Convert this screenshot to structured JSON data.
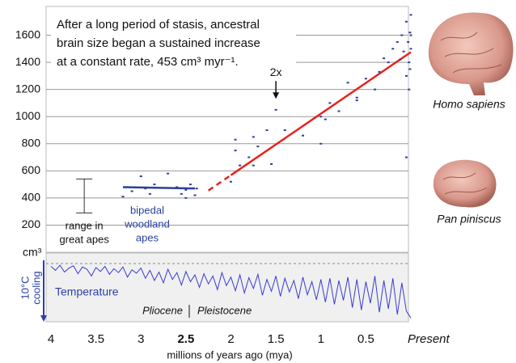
{
  "chart_data": {
    "type": "scatter",
    "title": [
      "After a long period of stasis, ancestral",
      "brain size began a sustained increase",
      "at a constant rate, 453 cm³ myr⁻¹."
    ],
    "x_label": "millions of years ago (mya)",
    "y_label": "cm³",
    "xlim": [
      4,
      0
    ],
    "ylim": [
      0,
      1800
    ],
    "xticks": [
      4,
      3.5,
      3,
      2.5,
      2,
      1.5,
      1,
      0.5,
      {
        "value": 0,
        "label": "Present"
      }
    ],
    "yticks": [
      200,
      400,
      600,
      800,
      1000,
      1200,
      1400,
      1600
    ],
    "grid": true,
    "series": [
      {
        "color": "#2b3f9e",
        "x": [
          3.2,
          3.15,
          3.1,
          3.0,
          2.95,
          2.9,
          2.85,
          2.7,
          2.6,
          2.55,
          2.5,
          2.5,
          2.45,
          2.4,
          2.38,
          2.0,
          1.95,
          1.95,
          1.9,
          1.8,
          1.75,
          1.75,
          1.7,
          1.6,
          1.55,
          1.5,
          1.4,
          1.2,
          1.0,
          1.0,
          0.95,
          0.9,
          0.8,
          0.7,
          0.6,
          0.6,
          0.5,
          0.4,
          0.35,
          0.3,
          0.25,
          0.2,
          0.15,
          0.12,
          0.1,
          0.08,
          0.05,
          0.05,
          0.03,
          0.02,
          0.02,
          0.01,
          0.01,
          0.0,
          0.0,
          0.0,
          0.05
        ],
        "values": [
          410,
          480,
          450,
          560,
          470,
          430,
          500,
          580,
          480,
          430,
          400,
          460,
          500,
          420,
          470,
          520,
          750,
          830,
          640,
          700,
          640,
          850,
          780,
          900,
          650,
          1050,
          900,
          860,
          800,
          1000,
          980,
          1100,
          1040,
          1250,
          1140,
          1120,
          1280,
          1200,
          1330,
          1430,
          1400,
          1500,
          1550,
          1420,
          1600,
          1480,
          1300,
          1700,
          1550,
          1200,
          1400,
          1620,
          1350,
          1500,
          1600,
          1750,
          700
        ]
      }
    ],
    "trend_lines": [
      {
        "color": "#2b3f9e",
        "x": [
          3.2,
          2.4
        ],
        "values": [
          480,
          470
        ]
      },
      {
        "color": "#e8231e",
        "dashed": true,
        "x": [
          2.25,
          2.0
        ],
        "values": [
          455,
          568
        ]
      },
      {
        "color": "#e8231e",
        "x": [
          2.0,
          0
        ],
        "values": [
          568,
          1475
        ]
      }
    ],
    "doubling": {
      "label": "2x",
      "x": 1.5,
      "value": 1000
    },
    "range": {
      "label": [
        "range in",
        "great apes"
      ],
      "x": 3.63,
      "low": 290,
      "high": 540
    },
    "group_label": {
      "text": [
        "bipedal",
        "woodland",
        "apes"
      ],
      "color": "#2b3f9e"
    },
    "temperature": {
      "label": "Temperature",
      "scale_label": [
        "10°C",
        "cooling"
      ],
      "color": "#3a3ad6",
      "ylim": [
        0,
        10
      ],
      "epochs": [
        "Pliocene",
        "Pleistocene"
      ],
      "x": [
        4,
        3.95,
        3.9,
        3.85,
        3.8,
        3.75,
        3.7,
        3.65,
        3.6,
        3.55,
        3.5,
        3.45,
        3.4,
        3.35,
        3.3,
        3.25,
        3.2,
        3.15,
        3.1,
        3.05,
        3,
        2.95,
        2.9,
        2.85,
        2.8,
        2.75,
        2.7,
        2.65,
        2.6,
        2.55,
        2.5,
        2.45,
        2.4,
        2.35,
        2.3,
        2.25,
        2.2,
        2.15,
        2.1,
        2.05,
        2,
        1.95,
        1.9,
        1.85,
        1.8,
        1.75,
        1.7,
        1.65,
        1.6,
        1.55,
        1.5,
        1.45,
        1.4,
        1.35,
        1.3,
        1.25,
        1.2,
        1.15,
        1.1,
        1.05,
        1,
        0.95,
        0.9,
        0.85,
        0.8,
        0.75,
        0.7,
        0.65,
        0.6,
        0.55,
        0.5,
        0.45,
        0.4,
        0.35,
        0.3,
        0.25,
        0.2,
        0.15,
        0.1,
        0.05,
        0
      ],
      "values": [
        0.5,
        1.2,
        0.3,
        1.5,
        0.8,
        0.4,
        1.8,
        0.6,
        1.0,
        2.2,
        0.7,
        1.4,
        0.5,
        1.9,
        0.9,
        1.6,
        0.6,
        2.4,
        1.1,
        1.7,
        0.8,
        2.6,
        1.2,
        3.0,
        1.5,
        3.4,
        1.0,
        2.8,
        1.6,
        3.8,
        1.4,
        3.2,
        2.0,
        4.2,
        1.8,
        3.6,
        2.2,
        4.6,
        1.6,
        3.9,
        2.4,
        4.8,
        2.0,
        5.2,
        2.5,
        4.4,
        1.9,
        5.6,
        2.8,
        4.9,
        2.2,
        5.8,
        2.6,
        5.0,
        3.0,
        6.2,
        2.4,
        5.5,
        3.2,
        6.4,
        2.8,
        6.8,
        2.6,
        7.2,
        3.0,
        6.5,
        2.4,
        7.8,
        2.8,
        8.2,
        3.2,
        7.0,
        2.2,
        8.6,
        3.0,
        8.0,
        2.6,
        9.0,
        3.4,
        8.4,
        9.6
      ]
    },
    "images": [
      {
        "label": "Homo sapiens"
      },
      {
        "label": "Pan piniscus"
      }
    ]
  }
}
